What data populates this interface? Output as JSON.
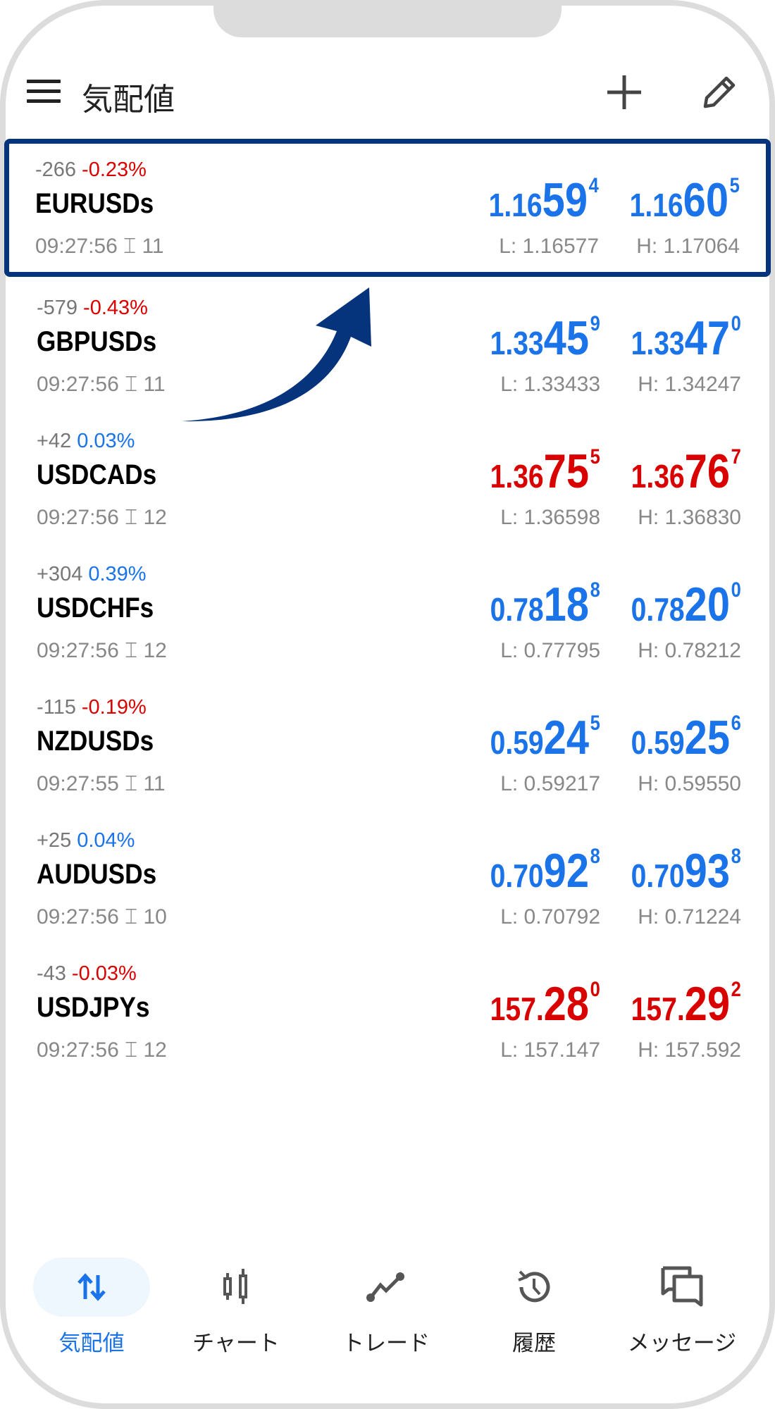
{
  "header": {
    "title": "気配値",
    "menu_icon": "hamburger-icon",
    "add_icon": "plus-icon",
    "edit_icon": "pencil-icon"
  },
  "colors": {
    "up": "#1a73e8",
    "down": "#d90000",
    "highlight": "#05347c"
  },
  "symbols": [
    {
      "change": "-266",
      "pct": "-0.23%",
      "pct_dir": "down",
      "name": "EURUSDs",
      "time": "09:27:56",
      "spread": "11",
      "price_dir": "up",
      "bid": {
        "a": "1.16",
        "b": "59",
        "c": "4"
      },
      "ask": {
        "a": "1.16",
        "b": "60",
        "c": "5"
      },
      "low": "L: 1.16577",
      "high": "H: 1.17064"
    },
    {
      "change": "-579",
      "pct": "-0.43%",
      "pct_dir": "down",
      "name": "GBPUSDs",
      "time": "09:27:56",
      "spread": "11",
      "price_dir": "up",
      "bid": {
        "a": "1.33",
        "b": "45",
        "c": "9"
      },
      "ask": {
        "a": "1.33",
        "b": "47",
        "c": "0"
      },
      "low": "L: 1.33433",
      "high": "H: 1.34247"
    },
    {
      "change": "+42",
      "pct": "0.03%",
      "pct_dir": "up",
      "name": "USDCADs",
      "time": "09:27:56",
      "spread": "12",
      "price_dir": "down",
      "bid": {
        "a": "1.36",
        "b": "75",
        "c": "5"
      },
      "ask": {
        "a": "1.36",
        "b": "76",
        "c": "7"
      },
      "low": "L: 1.36598",
      "high": "H: 1.36830"
    },
    {
      "change": "+304",
      "pct": "0.39%",
      "pct_dir": "up",
      "name": "USDCHFs",
      "time": "09:27:56",
      "spread": "12",
      "price_dir": "up",
      "bid": {
        "a": "0.78",
        "b": "18",
        "c": "8"
      },
      "ask": {
        "a": "0.78",
        "b": "20",
        "c": "0"
      },
      "low": "L: 0.77795",
      "high": "H: 0.78212"
    },
    {
      "change": "-115",
      "pct": "-0.19%",
      "pct_dir": "down",
      "name": "NZDUSDs",
      "time": "09:27:55",
      "spread": "11",
      "price_dir": "up",
      "bid": {
        "a": "0.59",
        "b": "24",
        "c": "5"
      },
      "ask": {
        "a": "0.59",
        "b": "25",
        "c": "6"
      },
      "low": "L: 0.59217",
      "high": "H: 0.59550"
    },
    {
      "change": "+25",
      "pct": "0.04%",
      "pct_dir": "up",
      "name": "AUDUSDs",
      "time": "09:27:56",
      "spread": "10",
      "price_dir": "up",
      "bid": {
        "a": "0.70",
        "b": "92",
        "c": "8"
      },
      "ask": {
        "a": "0.70",
        "b": "93",
        "c": "8"
      },
      "low": "L: 0.70792",
      "high": "H: 0.71224"
    },
    {
      "change": "-43",
      "pct": "-0.03%",
      "pct_dir": "down",
      "name": "USDJPYs",
      "time": "09:27:56",
      "spread": "12",
      "price_dir": "down",
      "bid": {
        "a": "157.",
        "b": "28",
        "c": "0"
      },
      "ask": {
        "a": "157.",
        "b": "29",
        "c": "2"
      },
      "low": "L: 157.147",
      "high": "H: 157.592"
    }
  ],
  "nav": [
    {
      "label": "気配値",
      "icon": "arrows-updown-icon",
      "active": true
    },
    {
      "label": "チャート",
      "icon": "candlestick-icon"
    },
    {
      "label": "トレード",
      "icon": "trade-line-icon"
    },
    {
      "label": "履歴",
      "icon": "history-icon"
    },
    {
      "label": "メッセージ",
      "icon": "messages-icon"
    }
  ]
}
